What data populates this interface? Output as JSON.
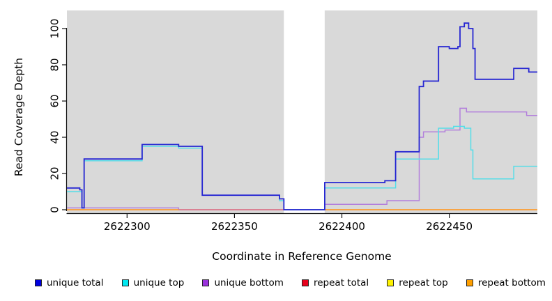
{
  "chart": {
    "ylabel": "Read Coverage Depth",
    "xlabel": "Coordinate in Reference Genome"
  },
  "chart_data": {
    "type": "line",
    "step": true,
    "title": "",
    "xlabel": "Coordinate in Reference Genome",
    "ylabel": "Read Coverage Depth",
    "xlim": [
      2622272,
      2622491
    ],
    "ylim": [
      0,
      110
    ],
    "x_ticks": [
      2622300,
      2622350,
      2622400,
      2622450
    ],
    "y_ticks": [
      0,
      20,
      40,
      60,
      80,
      100
    ],
    "grid": false,
    "legend_position": "bottom",
    "plot_background": "#d9d9d9",
    "page_background": "#ffffff",
    "masked_region": {
      "x0": 2622373,
      "x1": 2622392,
      "color": "#ffffff",
      "note": "white vertical band with no gray shading"
    },
    "series": [
      {
        "name": "unique total",
        "z": 5,
        "legend_color": "#0000e0",
        "line_color": "#2626d2",
        "line_width": 1.8,
        "segments": [
          {
            "end": 2622491,
            "points": [
              [
                2622272,
                12
              ],
              [
                2622278,
                11
              ],
              [
                2622279,
                1
              ],
              [
                2622280,
                28
              ],
              [
                2622307,
                36
              ],
              [
                2622324,
                35
              ],
              [
                2622335,
                8
              ],
              [
                2622371,
                6
              ],
              [
                2622373,
                0
              ],
              [
                2622392,
                15
              ],
              [
                2622420,
                16
              ],
              [
                2622425,
                32
              ],
              [
                2622436,
                68
              ],
              [
                2622438,
                71
              ],
              [
                2622445,
                90
              ],
              [
                2622450,
                89
              ],
              [
                2622454,
                90
              ],
              [
                2622455,
                101
              ],
              [
                2622457,
                103
              ],
              [
                2622459,
                100
              ],
              [
                2622461,
                89
              ],
              [
                2622462,
                72
              ],
              [
                2622480,
                78
              ],
              [
                2622487,
                76
              ]
            ]
          }
        ]
      },
      {
        "name": "unique top",
        "z": 4,
        "legend_color": "#00e8f0",
        "line_color": "#56dde8",
        "line_width": 1.5,
        "segments": [
          {
            "end": 2622491,
            "points": [
              [
                2622272,
                10
              ],
              [
                2622279,
                1
              ],
              [
                2622280,
                27
              ],
              [
                2622307,
                35
              ],
              [
                2622324,
                34
              ],
              [
                2622335,
                8
              ],
              [
                2622371,
                5
              ],
              [
                2622373,
                0
              ],
              [
                2622392,
                12
              ],
              [
                2622425,
                28
              ],
              [
                2622445,
                45
              ],
              [
                2622452,
                46
              ],
              [
                2622457,
                45
              ],
              [
                2622460,
                33
              ],
              [
                2622461,
                17
              ],
              [
                2622480,
                24
              ]
            ]
          }
        ]
      },
      {
        "name": "unique bottom",
        "z": 0,
        "legend_color": "#9a32dc",
        "line_color": "#b37fdc",
        "line_width": 1.5,
        "segments": [
          {
            "end": 2622491,
            "points": [
              [
                2622272,
                1
              ],
              [
                2622324,
                0
              ],
              [
                2622392,
                3
              ],
              [
                2622421,
                5
              ],
              [
                2622436,
                40
              ],
              [
                2622438,
                43
              ],
              [
                2622448,
                44
              ],
              [
                2622455,
                56
              ],
              [
                2622458,
                54
              ],
              [
                2622486,
                52
              ]
            ]
          }
        ]
      },
      {
        "name": "repeat total",
        "z": 2,
        "legend_color": "#e8001c",
        "line_color": "#e0607f",
        "line_width": 1.3,
        "segments": [
          {
            "end": 2622491,
            "points": [
              [
                2622272,
                0
              ]
            ]
          }
        ]
      },
      {
        "name": "repeat top",
        "z": 1,
        "legend_color": "#fef200",
        "line_color": "#f0e04a",
        "line_width": 1.3,
        "segments": [
          {
            "end": 2622491,
            "points": [
              [
                2622272,
                0
              ]
            ]
          }
        ]
      },
      {
        "name": "repeat bottom",
        "z": 3,
        "legend_color": "#ff9f00",
        "line_color": "#ff9d26",
        "line_width": 1.6,
        "segments": [
          {
            "end": 2622324,
            "points": [
              [
                2622272,
                0
              ]
            ]
          },
          {
            "end": 2622491,
            "points": [
              [
                2622392,
                0
              ]
            ]
          }
        ]
      }
    ]
  }
}
